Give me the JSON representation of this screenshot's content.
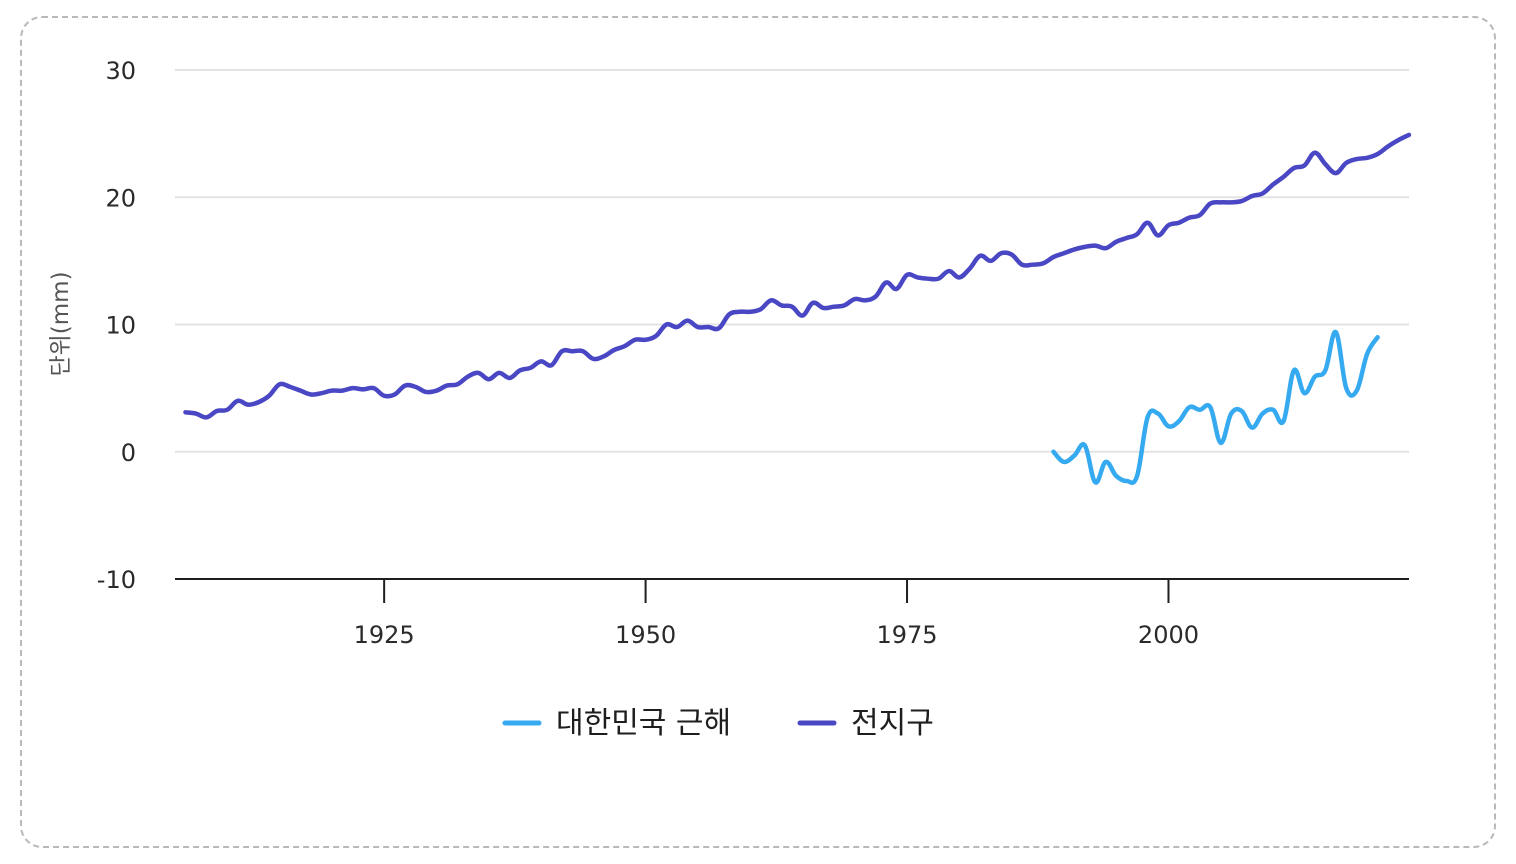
{
  "chart_data": {
    "type": "line",
    "title": "",
    "xlabel": "",
    "ylabel": "단위(mm)",
    "xlim": [
      1905,
      2023
    ],
    "ylim": [
      -10,
      30
    ],
    "x_ticks": [
      1925,
      1950,
      1975,
      2000
    ],
    "y_ticks": [
      30,
      20,
      10,
      0,
      -10
    ],
    "grid": "horizontal",
    "legend_position": "bottom-center",
    "series": [
      {
        "name": "대한민국 근해",
        "color": "#36aaf0",
        "points": [
          [
            1989,
            0.0
          ],
          [
            1990,
            -0.8
          ],
          [
            1991,
            -0.3
          ],
          [
            1992,
            0.5
          ],
          [
            1993,
            -2.4
          ],
          [
            1994,
            -0.8
          ],
          [
            1995,
            -1.9
          ],
          [
            1996,
            -2.3
          ],
          [
            1997,
            -1.9
          ],
          [
            1998,
            2.7
          ],
          [
            1999,
            3.0
          ],
          [
            2000,
            2.0
          ],
          [
            2001,
            2.4
          ],
          [
            2002,
            3.5
          ],
          [
            2003,
            3.3
          ],
          [
            2004,
            3.5
          ],
          [
            2005,
            0.7
          ],
          [
            2006,
            3.0
          ],
          [
            2007,
            3.2
          ],
          [
            2008,
            1.9
          ],
          [
            2009,
            3.0
          ],
          [
            2010,
            3.3
          ],
          [
            2011,
            2.4
          ],
          [
            2012,
            6.4
          ],
          [
            2013,
            4.6
          ],
          [
            2014,
            5.9
          ],
          [
            2015,
            6.4
          ],
          [
            2016,
            9.4
          ],
          [
            2017,
            5.0
          ],
          [
            2018,
            4.8
          ],
          [
            2019,
            7.7
          ],
          [
            2020,
            9.0
          ]
        ]
      },
      {
        "name": "전지구",
        "color": "#4a47c4",
        "points": [
          [
            1906,
            3.1
          ],
          [
            1907,
            3.0
          ],
          [
            1908,
            2.7
          ],
          [
            1909,
            3.2
          ],
          [
            1910,
            3.3
          ],
          [
            1911,
            4.0
          ],
          [
            1912,
            3.7
          ],
          [
            1913,
            3.9
          ],
          [
            1914,
            4.4
          ],
          [
            1915,
            5.3
          ],
          [
            1916,
            5.1
          ],
          [
            1917,
            4.8
          ],
          [
            1918,
            4.5
          ],
          [
            1919,
            4.6
          ],
          [
            1920,
            4.8
          ],
          [
            1921,
            4.8
          ],
          [
            1922,
            5.0
          ],
          [
            1923,
            4.9
          ],
          [
            1924,
            5.0
          ],
          [
            1925,
            4.4
          ],
          [
            1926,
            4.5
          ],
          [
            1927,
            5.2
          ],
          [
            1928,
            5.1
          ],
          [
            1929,
            4.7
          ],
          [
            1930,
            4.8
          ],
          [
            1931,
            5.2
          ],
          [
            1932,
            5.3
          ],
          [
            1933,
            5.9
          ],
          [
            1934,
            6.2
          ],
          [
            1935,
            5.7
          ],
          [
            1936,
            6.2
          ],
          [
            1937,
            5.8
          ],
          [
            1938,
            6.4
          ],
          [
            1939,
            6.6
          ],
          [
            1940,
            7.1
          ],
          [
            1941,
            6.8
          ],
          [
            1942,
            7.9
          ],
          [
            1943,
            7.9
          ],
          [
            1944,
            7.9
          ],
          [
            1945,
            7.3
          ],
          [
            1946,
            7.5
          ],
          [
            1947,
            8.0
          ],
          [
            1948,
            8.3
          ],
          [
            1949,
            8.8
          ],
          [
            1950,
            8.8
          ],
          [
            1951,
            9.1
          ],
          [
            1952,
            10.0
          ],
          [
            1953,
            9.8
          ],
          [
            1954,
            10.3
          ],
          [
            1955,
            9.8
          ],
          [
            1956,
            9.8
          ],
          [
            1957,
            9.7
          ],
          [
            1958,
            10.8
          ],
          [
            1959,
            11.0
          ],
          [
            1960,
            11.0
          ],
          [
            1961,
            11.2
          ],
          [
            1962,
            11.9
          ],
          [
            1963,
            11.5
          ],
          [
            1964,
            11.4
          ],
          [
            1965,
            10.7
          ],
          [
            1966,
            11.7
          ],
          [
            1967,
            11.3
          ],
          [
            1968,
            11.4
          ],
          [
            1969,
            11.5
          ],
          [
            1970,
            12.0
          ],
          [
            1971,
            11.9
          ],
          [
            1972,
            12.2
          ],
          [
            1973,
            13.3
          ],
          [
            1974,
            12.8
          ],
          [
            1975,
            13.9
          ],
          [
            1976,
            13.7
          ],
          [
            1977,
            13.6
          ],
          [
            1978,
            13.6
          ],
          [
            1979,
            14.2
          ],
          [
            1980,
            13.7
          ],
          [
            1981,
            14.4
          ],
          [
            1982,
            15.4
          ],
          [
            1983,
            15.0
          ],
          [
            1984,
            15.6
          ],
          [
            1985,
            15.5
          ],
          [
            1986,
            14.7
          ],
          [
            1987,
            14.7
          ],
          [
            1988,
            14.8
          ],
          [
            1989,
            15.3
          ],
          [
            1990,
            15.6
          ],
          [
            1991,
            15.9
          ],
          [
            1992,
            16.1
          ],
          [
            1993,
            16.2
          ],
          [
            1994,
            16.0
          ],
          [
            1995,
            16.5
          ],
          [
            1996,
            16.8
          ],
          [
            1997,
            17.1
          ],
          [
            1998,
            18.0
          ],
          [
            1999,
            17.0
          ],
          [
            2000,
            17.8
          ],
          [
            2001,
            18.0
          ],
          [
            2002,
            18.4
          ],
          [
            2003,
            18.6
          ],
          [
            2004,
            19.5
          ],
          [
            2005,
            19.6
          ],
          [
            2006,
            19.6
          ],
          [
            2007,
            19.7
          ],
          [
            2008,
            20.1
          ],
          [
            2009,
            20.3
          ],
          [
            2010,
            21.0
          ],
          [
            2011,
            21.6
          ],
          [
            2012,
            22.3
          ],
          [
            2013,
            22.5
          ],
          [
            2014,
            23.5
          ],
          [
            2015,
            22.6
          ],
          [
            2016,
            21.9
          ],
          [
            2017,
            22.7
          ],
          [
            2018,
            23.0
          ],
          [
            2019,
            23.1
          ],
          [
            2020,
            23.4
          ],
          [
            2021,
            24.0
          ],
          [
            2022,
            24.5
          ],
          [
            2023,
            24.9
          ]
        ]
      }
    ]
  }
}
